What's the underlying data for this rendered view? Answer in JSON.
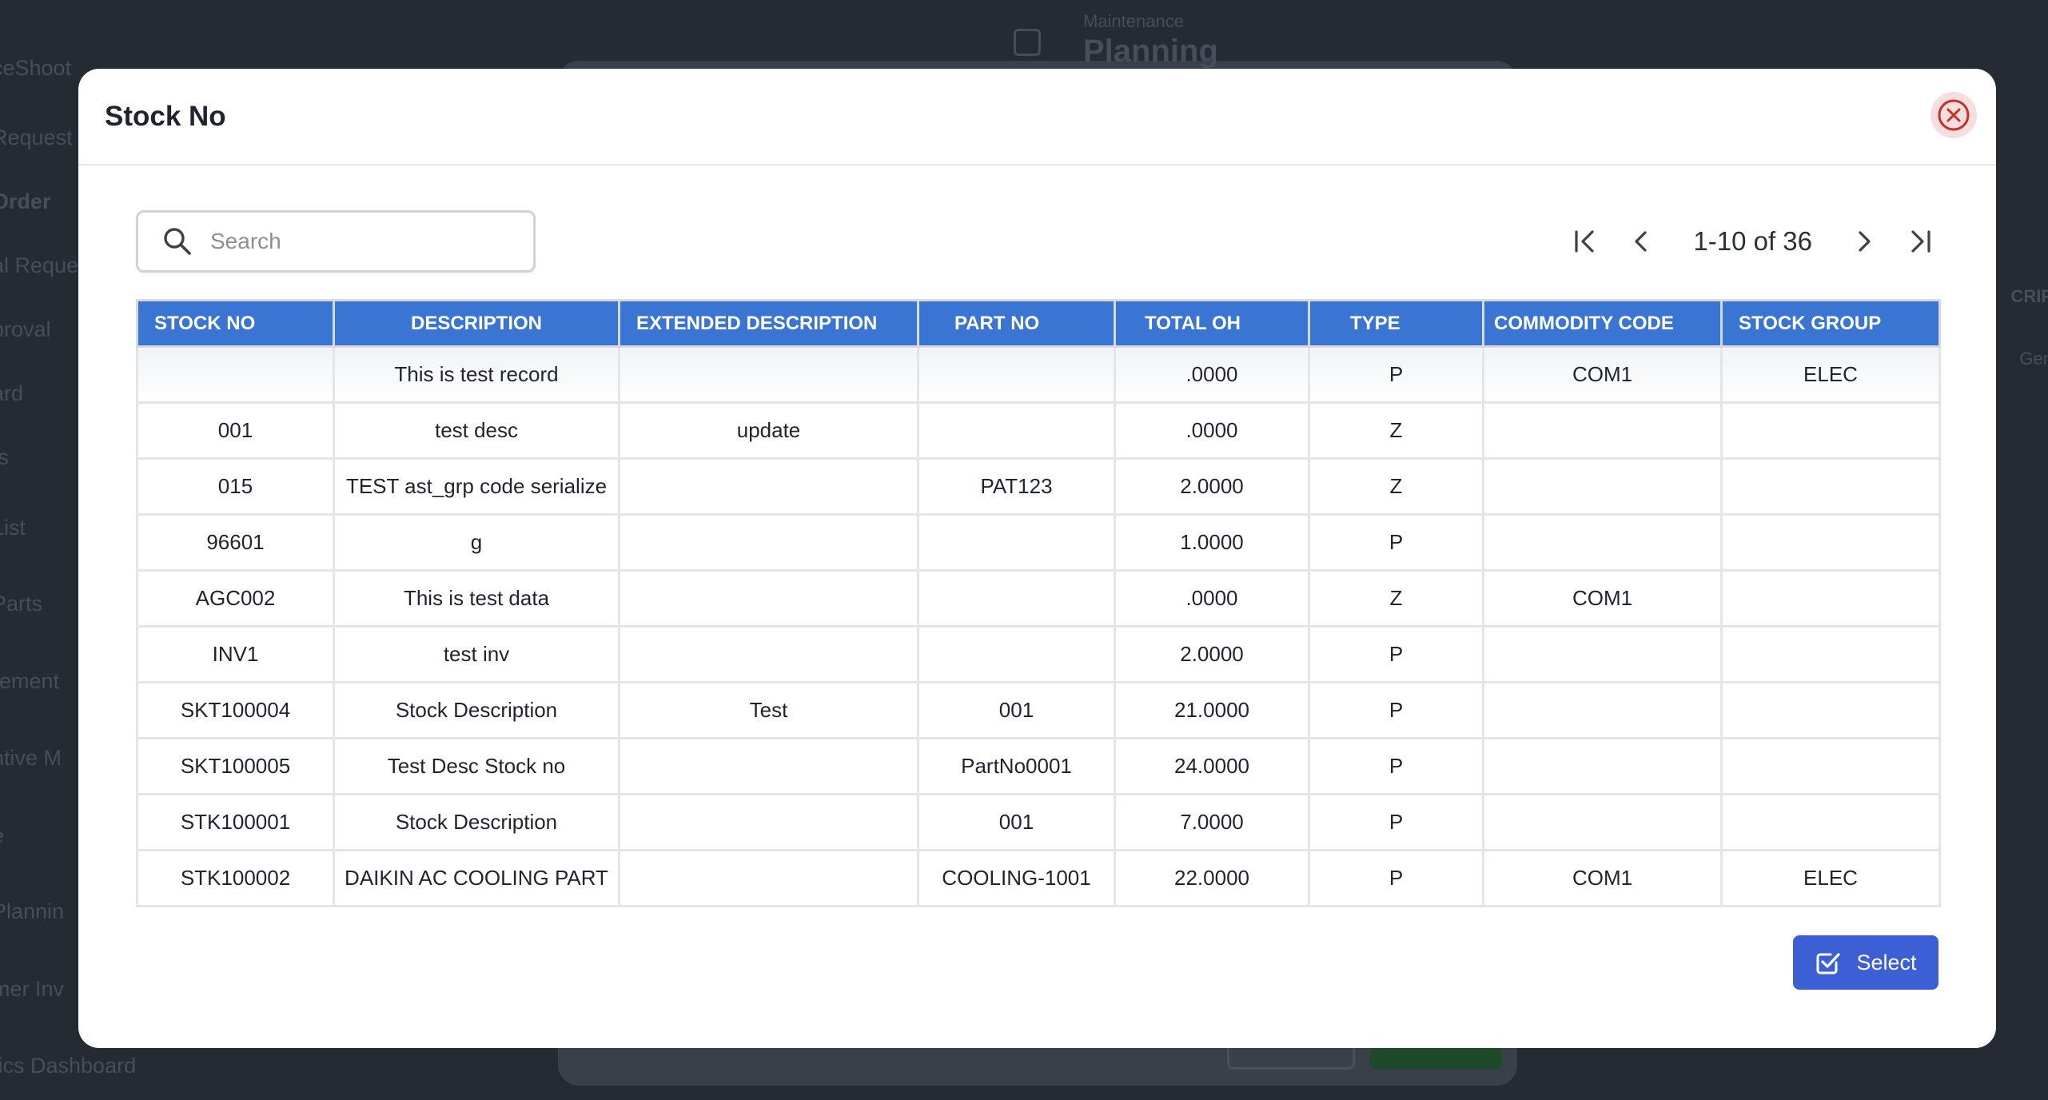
{
  "background": {
    "header_sub": "Maintenance",
    "header_title": "Planning",
    "sidebar": [
      {
        "label": "ceShoot",
        "bold": false
      },
      {
        "label": "Request",
        "bold": false
      },
      {
        "label": "Order",
        "bold": true
      },
      {
        "label": "al Reque",
        "bold": false
      },
      {
        "label": "proval",
        "bold": false
      },
      {
        "label": "ard",
        "bold": false
      },
      {
        "label": "ts",
        "bold": false
      },
      {
        "label": "List",
        "bold": false
      },
      {
        "label": "Parts",
        "bold": false
      },
      {
        "label": "rement",
        "bold": false
      },
      {
        "label": "ntive M",
        "bold": false
      },
      {
        "label": "e",
        "bold": false
      },
      {
        "label": "Plannin",
        "bold": false
      },
      {
        "label": "mer Inv",
        "bold": false
      },
      {
        "label": "tics Dashboard",
        "bold": false
      }
    ],
    "right_labels": [
      "CRIP",
      "Gen"
    ]
  },
  "modal": {
    "title": "Stock No",
    "close_icon": "close-circle-icon",
    "search": {
      "placeholder": "Search",
      "value": "",
      "icon": "search-icon"
    },
    "pagination": {
      "range_text": "1-10 of 36"
    },
    "table": {
      "headers": [
        "STOCK NO",
        "DESCRIPTION",
        "EXTENDED DESCRIPTION",
        "PART NO",
        "TOTAL OH",
        "TYPE",
        "COMMODITY CODE",
        "STOCK GROUP"
      ],
      "rows": [
        [
          "",
          "This is test record",
          "",
          "",
          ".0000",
          "P",
          "COM1",
          "ELEC"
        ],
        [
          "001",
          "test desc",
          "update",
          "",
          ".0000",
          "Z",
          "",
          ""
        ],
        [
          "015",
          "TEST ast_grp code serialize",
          "",
          "PAT123",
          "2.0000",
          "Z",
          "",
          ""
        ],
        [
          "96601",
          "g",
          "",
          "",
          "1.0000",
          "P",
          "",
          ""
        ],
        [
          "AGC002",
          "This is test data",
          "",
          "",
          ".0000",
          "Z",
          "COM1",
          ""
        ],
        [
          "INV1",
          "test inv",
          "",
          "",
          "2.0000",
          "P",
          "",
          ""
        ],
        [
          "SKT100004",
          "Stock Description",
          "Test",
          "001",
          "21.0000",
          "P",
          "",
          ""
        ],
        [
          "SKT100005",
          "Test Desc Stock no",
          "",
          "PartNo0001",
          "24.0000",
          "P",
          "",
          ""
        ],
        [
          "STK100001",
          "Stock Description",
          "",
          "001",
          "7.0000",
          "P",
          "",
          ""
        ],
        [
          "STK100002",
          "DAIKIN AC COOLING PART",
          "",
          "COOLING-1001",
          "22.0000",
          "P",
          "COM1",
          "ELEC"
        ]
      ]
    },
    "select_button": {
      "label": "Select",
      "icon": "checkbox-icon"
    }
  },
  "colors": {
    "header_blue": "#3a75d4",
    "select_blue": "#3d5fd6",
    "close_red": "#c6302b"
  }
}
